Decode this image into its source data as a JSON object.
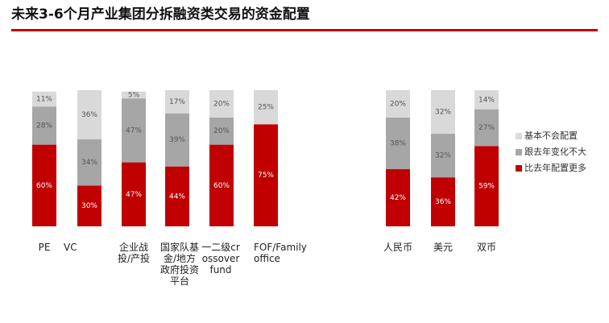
{
  "chart_data": {
    "type": "stacked-bar",
    "title": "未来3-6个月产业集团分拆融资类交易的资金配置",
    "categories": [
      "PE",
      "VC",
      "企业战投/产投",
      "国家队基金/地方政府投资平台",
      "一二级crossover fund",
      "FOF/Family office",
      "人民币",
      "美元",
      "双币"
    ],
    "series": [
      {
        "name": "比去年配置更多",
        "color": "#c00000",
        "values": [
          60,
          30,
          47,
          44,
          60,
          75,
          42,
          36,
          59
        ],
        "value_labels": [
          "60%",
          "30%",
          "47%",
          "44%",
          "60%",
          "75%",
          "42%",
          "36%",
          "59%"
        ]
      },
      {
        "name": "跟去年变化不大",
        "color": "#a6a6a6",
        "values": [
          28,
          34,
          47,
          39,
          20,
          null,
          38,
          32,
          27
        ],
        "value_labels": [
          "28%",
          "34%",
          "47%",
          "39%",
          "20%",
          null,
          "38%",
          "32%",
          "27%"
        ]
      },
      {
        "name": "基本不会配置",
        "color": "#d9d9d9",
        "values": [
          11,
          36,
          5,
          17,
          20,
          25,
          20,
          32,
          14
        ],
        "value_labels": [
          "11%",
          "36%",
          "5%",
          "17%",
          "20%",
          "25%",
          "20%",
          "32%",
          "14%"
        ]
      }
    ],
    "legend": "right"
  }
}
